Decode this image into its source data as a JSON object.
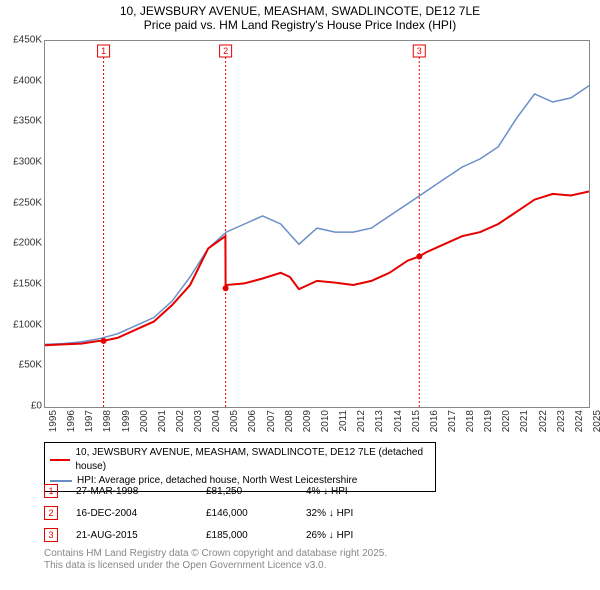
{
  "chart": {
    "title_main": "10, JEWSBURY AVENUE, MEASHAM, SWADLINCOTE, DE12 7LE",
    "title_sub": "Price paid vs. HM Land Registry's House Price Index (HPI)",
    "title_fontsize": 12,
    "background_color": "#ffffff",
    "plot_border_color": "#888888",
    "axis_text_color": "#333333",
    "axis_fontsize": 10,
    "y": {
      "min": 0,
      "max": 450000,
      "step": 50000,
      "labels": [
        "£0",
        "£50K",
        "£100K",
        "£150K",
        "£200K",
        "£250K",
        "£300K",
        "£350K",
        "£400K",
        "£450K"
      ]
    },
    "x": {
      "min": 1995,
      "max": 2025,
      "step": 1,
      "labels": [
        "1995",
        "1996",
        "1997",
        "1998",
        "1999",
        "2000",
        "2001",
        "2002",
        "2003",
        "2004",
        "2005",
        "2006",
        "2007",
        "2008",
        "2009",
        "2010",
        "2011",
        "2012",
        "2013",
        "2014",
        "2015",
        "2016",
        "2017",
        "2018",
        "2019",
        "2020",
        "2021",
        "2022",
        "2023",
        "2024",
        "2025"
      ]
    },
    "series": {
      "price_paid": {
        "label": "10, JEWSBURY AVENUE, MEASHAM, SWADLINCOTE, DE12 7LE (detached house)",
        "color": "#e60000",
        "line_width": 2,
        "data": [
          [
            1995,
            76000
          ],
          [
            1996,
            77000
          ],
          [
            1997,
            78000
          ],
          [
            1998,
            81250
          ],
          [
            1998.2,
            81250
          ],
          [
            1999,
            85000
          ],
          [
            2000,
            95000
          ],
          [
            2001,
            105000
          ],
          [
            2002,
            125000
          ],
          [
            2003,
            150000
          ],
          [
            2004,
            195000
          ],
          [
            2004.95,
            210000
          ],
          [
            2004.96,
            146000
          ],
          [
            2005,
            150000
          ],
          [
            2006,
            152000
          ],
          [
            2007,
            158000
          ],
          [
            2008,
            165000
          ],
          [
            2008.5,
            160000
          ],
          [
            2009,
            145000
          ],
          [
            2010,
            155000
          ],
          [
            2011,
            153000
          ],
          [
            2012,
            150000
          ],
          [
            2013,
            155000
          ],
          [
            2014,
            165000
          ],
          [
            2015,
            180000
          ],
          [
            2015.64,
            185000
          ],
          [
            2016,
            190000
          ],
          [
            2017,
            200000
          ],
          [
            2018,
            210000
          ],
          [
            2019,
            215000
          ],
          [
            2020,
            225000
          ],
          [
            2021,
            240000
          ],
          [
            2022,
            255000
          ],
          [
            2023,
            262000
          ],
          [
            2024,
            260000
          ],
          [
            2025,
            265000
          ]
        ]
      },
      "hpi": {
        "label": "HPI: Average price, detached house, North West Leicestershire",
        "color": "#6a8fc8",
        "line_width": 1.5,
        "data": [
          [
            1995,
            77000
          ],
          [
            1996,
            78000
          ],
          [
            1997,
            80000
          ],
          [
            1998,
            84000
          ],
          [
            1999,
            90000
          ],
          [
            2000,
            100000
          ],
          [
            2001,
            110000
          ],
          [
            2002,
            130000
          ],
          [
            2003,
            160000
          ],
          [
            2004,
            195000
          ],
          [
            2005,
            215000
          ],
          [
            2006,
            225000
          ],
          [
            2007,
            235000
          ],
          [
            2008,
            225000
          ],
          [
            2009,
            200000
          ],
          [
            2010,
            220000
          ],
          [
            2011,
            215000
          ],
          [
            2012,
            215000
          ],
          [
            2013,
            220000
          ],
          [
            2014,
            235000
          ],
          [
            2015,
            250000
          ],
          [
            2016,
            265000
          ],
          [
            2017,
            280000
          ],
          [
            2018,
            295000
          ],
          [
            2019,
            305000
          ],
          [
            2020,
            320000
          ],
          [
            2021,
            355000
          ],
          [
            2022,
            385000
          ],
          [
            2023,
            375000
          ],
          [
            2024,
            380000
          ],
          [
            2025,
            395000
          ]
        ]
      }
    },
    "markers": [
      {
        "n": "1",
        "year": 1998.23,
        "date": "27-MAR-1998",
        "price": "£81,250",
        "delta": "4% ↓ HPI",
        "color": "#e60000"
      },
      {
        "n": "2",
        "year": 2004.96,
        "date": "16-DEC-2004",
        "price": "£146,000",
        "delta": "32% ↓ HPI",
        "color": "#e60000"
      },
      {
        "n": "3",
        "year": 2015.64,
        "date": "21-AUG-2015",
        "price": "£185,000",
        "delta": "26% ↓ HPI",
        "color": "#e60000"
      }
    ],
    "marker_line_color": "#e60000",
    "marker_line_dash": "2,2"
  },
  "legend": {
    "border_color": "#000000",
    "fontsize": 10
  },
  "footer": {
    "line1": "Contains HM Land Registry data © Crown copyright and database right 2025.",
    "line2": "This data is licensed under the Open Government Licence v3.0.",
    "color": "#888888",
    "fontsize": 10
  }
}
